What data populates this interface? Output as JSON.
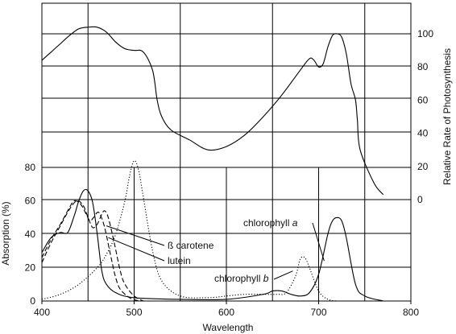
{
  "chart_data": {
    "type": "line",
    "xlabel": "Wavelength",
    "ylabel_left": "Absorption (%)",
    "ylabel_right": "Relative Rate of Photosynthesis",
    "xlim": [
      400,
      800
    ],
    "x_ticks": [
      "400",
      "500",
      "600",
      "700",
      "800"
    ],
    "absorption_ylim": [
      0,
      100
    ],
    "absorption_ticks": [
      "0",
      "20",
      "40",
      "60",
      "80"
    ],
    "photosynthesis_ylim": [
      -10,
      110
    ],
    "photosynthesis_ticks": [
      "0",
      "20",
      "40",
      "60",
      "80",
      "100"
    ],
    "grid": true,
    "series": [
      {
        "name": "chlorophyll a",
        "label_main": "chlorophyll ",
        "label_suffix": "a",
        "style": "solid",
        "x": [
          400,
          410,
          420,
          428,
          435,
          440,
          445,
          450,
          455,
          460,
          465,
          470,
          480,
          500,
          550,
          600,
          640,
          650,
          660,
          670,
          680,
          690,
          700,
          710,
          715,
          720,
          725,
          730,
          740,
          750,
          770
        ],
        "y": [
          29,
          38,
          41,
          41,
          51,
          60,
          66,
          66,
          59,
          40,
          18,
          10,
          5,
          2,
          1,
          1,
          4,
          6,
          6,
          4,
          3,
          5,
          16,
          40,
          48,
          50,
          48,
          38,
          10,
          3,
          0
        ]
      },
      {
        "name": "chlorophyll b",
        "label_main": "chlorophyll ",
        "label_suffix": "b",
        "style": "dotted",
        "x": [
          400,
          420,
          440,
          460,
          470,
          480,
          490,
          495,
          500,
          505,
          510,
          520,
          530,
          550,
          580,
          600,
          620,
          640,
          655,
          665,
          675,
          680,
          685,
          690,
          700,
          710,
          720
        ],
        "y": [
          1,
          4,
          10,
          20,
          28,
          40,
          60,
          75,
          84,
          78,
          62,
          30,
          12,
          3,
          2,
          3,
          4,
          4,
          4,
          5,
          15,
          25,
          26,
          20,
          6,
          1,
          0
        ]
      },
      {
        "name": "ß carotene",
        "label_main": "ß carotene",
        "label_suffix": "",
        "style": "dashed",
        "x": [
          400,
          410,
          420,
          430,
          438,
          445,
          450,
          455,
          460,
          465,
          468,
          472,
          478,
          485,
          490,
          500,
          510
        ],
        "y": [
          23,
          35,
          45,
          55,
          60,
          57,
          50,
          44,
          46,
          52,
          54,
          50,
          36,
          18,
          10,
          3,
          0
        ]
      },
      {
        "name": "lutein",
        "label_main": "lutein",
        "label_suffix": "",
        "style": "dashed",
        "x": [
          400,
          410,
          420,
          430,
          435,
          442,
          448,
          452,
          456,
          460,
          463,
          468,
          475,
          480,
          485,
          495,
          505
        ],
        "y": [
          26,
          37,
          46,
          56,
          60,
          58,
          52,
          48,
          50,
          53,
          52,
          44,
          26,
          14,
          7,
          2,
          0
        ]
      },
      {
        "name": "Relative Rate of Photosynthesis",
        "style": "solid",
        "axis": "right",
        "x": [
          400,
          410,
          420,
          430,
          440,
          450,
          460,
          470,
          480,
          490,
          500,
          510,
          520,
          525,
          530,
          540,
          560,
          580,
          600,
          620,
          640,
          660,
          680,
          690,
          695,
          700,
          705,
          710,
          715,
          720,
          725,
          730,
          735,
          740,
          742,
          745,
          760,
          770
        ],
        "y": [
          84,
          89,
          94,
          99,
          103,
          104,
          104,
          101,
          95,
          91,
          90,
          89,
          78,
          60,
          50,
          42,
          36,
          30,
          32,
          39,
          50,
          63,
          78,
          85,
          84,
          80,
          82,
          92,
          99,
          100,
          98,
          88,
          70,
          60,
          48,
          30,
          10,
          3
        ]
      }
    ]
  }
}
